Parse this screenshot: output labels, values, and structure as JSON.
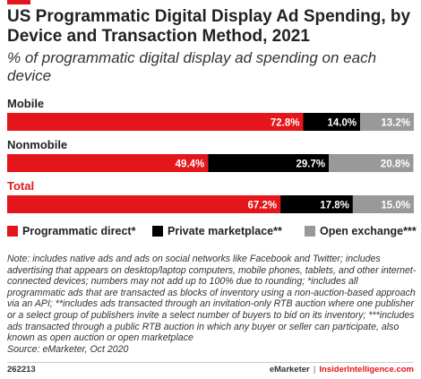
{
  "header": {
    "title": "US Programmatic Digital Display Ad Spending, by Device and Transaction Method, 2021",
    "subtitle": "% of programmatic digital display ad spending on each device"
  },
  "chart_data": {
    "type": "bar",
    "orientation": "horizontal",
    "stacked": true,
    "title": "US Programmatic Digital Display Ad Spending, by Device and Transaction Method, 2021",
    "subtitle": "% of programmatic digital display ad spending on each device",
    "categories": [
      "Mobile",
      "Nonmobile",
      "Total"
    ],
    "category_colors": [
      "#222222",
      "#222222",
      "#e4161b"
    ],
    "series": [
      {
        "name": "Programmatic direct*",
        "values": [
          72.8,
          49.4,
          67.2
        ],
        "labels": [
          "72.8%",
          "49.4%",
          "67.2%"
        ],
        "color": "#e4161b",
        "label_color": "#ffffff"
      },
      {
        "name": "Private marketplace**",
        "values": [
          14.0,
          29.7,
          17.8
        ],
        "labels": [
          "14.0%",
          "29.7%",
          "17.8%"
        ],
        "color": "#000000",
        "label_color": "#ffffff"
      },
      {
        "name": "Open exchange***",
        "values": [
          13.2,
          20.8,
          15.0
        ],
        "labels": [
          "13.2%",
          "20.8%",
          "15.0%"
        ],
        "color": "#999999",
        "label_color": "#ffffff"
      }
    ],
    "xlim": [
      0,
      100
    ],
    "grid": false,
    "legend_position": "bottom-left"
  },
  "footer": {
    "note": "Note: includes native ads and ads on social networks like Facebook and Twitter; includes advertising that appears on desktop/laptop computers, mobile phones, tablets, and other internet-connected devices; numbers may not add up to 100% due to rounding; *includes all programmatic ads that are transacted as blocks of inventory using a non-auction-based approach via an API; **includes ads transacted through an invitation-only RTB auction where one publisher or a select group of publishers invite a select number of buyers to bid on its inventory; ***includes ads transacted through a public RTB auction in which any buyer or seller can participate, also known as open auction or open marketplace",
    "source": "Source: eMarketer, Oct 2020",
    "id": "262213",
    "brand_left": "eMarketer",
    "brand_separator": "|",
    "brand_right": "InsiderIntelligence.com"
  },
  "colors": {
    "accent": "#e4161b",
    "dark": "#000000",
    "gray": "#999999"
  }
}
